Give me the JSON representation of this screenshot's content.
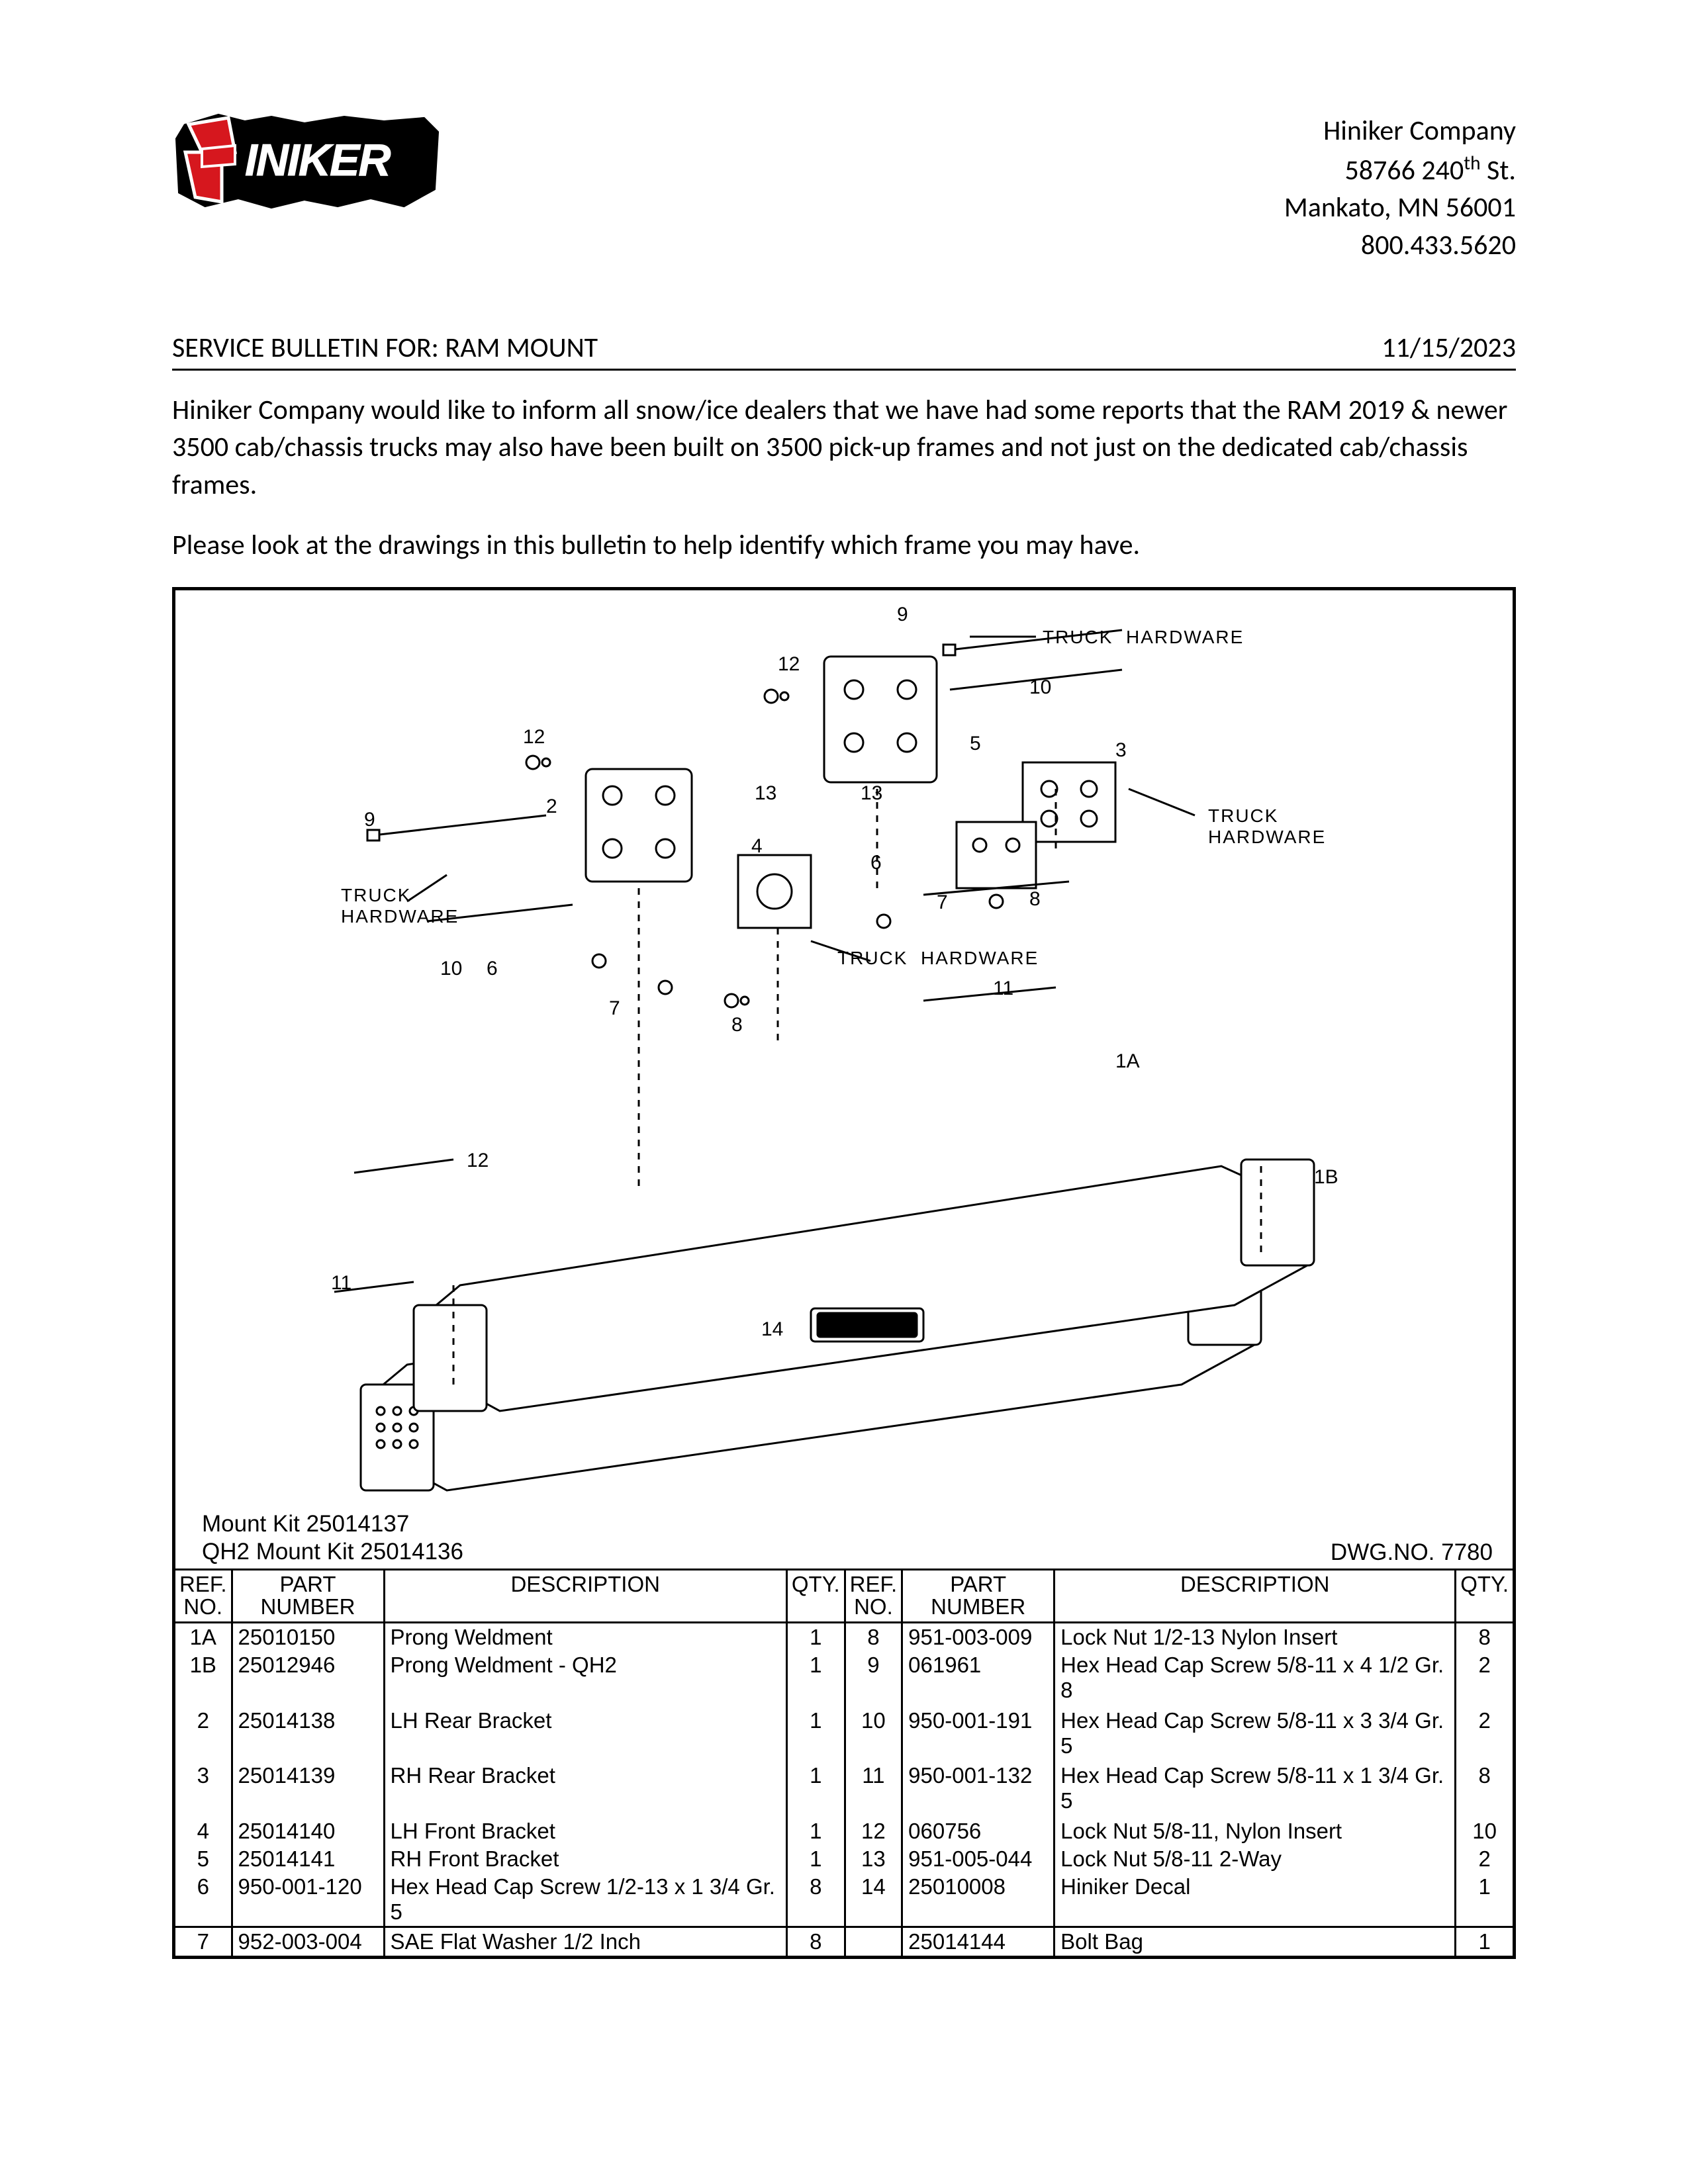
{
  "company": {
    "name": "Hiniker Company",
    "street": "58766 240th St.",
    "street_pre": "58766 240",
    "street_suffix": "th",
    "street_post": " St.",
    "city": "Mankato, MN 56001",
    "phone": "800.433.5620"
  },
  "bulletin": {
    "title": "SERVICE BULLETIN FOR: RAM MOUNT",
    "date": "11/15/2023"
  },
  "paragraphs": {
    "p1": "Hiniker Company would like to inform all snow/ice dealers that we have had some reports that the RAM 2019 & newer 3500 cab/chassis trucks may also have been built on 3500 pick-up frames and not just on the dedicated cab/chassis frames.",
    "p2": "Please look at the drawings in this bulletin to help identify which frame you may have."
  },
  "kits": {
    "line1": "Mount Kit 25014137",
    "line2": "QH2 Mount Kit 25014136",
    "dwg": "DWG.NO. 7780"
  },
  "diagram_labels": {
    "th1": "TRUCK  HARDWARE",
    "th2": "TRUCK\nHARDWARE",
    "th3": "TRUCK\nHARDWARE",
    "th4": "TRUCK  HARDWARE"
  },
  "callouts": [
    "1A",
    "1B",
    "2",
    "3",
    "4",
    "5",
    "6",
    "7",
    "8",
    "9",
    "10",
    "11",
    "12",
    "13",
    "14"
  ],
  "table": {
    "headers": {
      "ref": "REF.\nNO.",
      "part": "PART\nNUMBER",
      "desc": "DESCRIPTION",
      "qty": "QTY."
    },
    "left": [
      {
        "ref": "1A",
        "part": "25010150",
        "desc": "Prong Weldment",
        "qty": "1"
      },
      {
        "ref": "1B",
        "part": "25012946",
        "desc": "Prong Weldment - QH2",
        "qty": "1"
      },
      {
        "ref": "",
        "part": "",
        "desc": "",
        "qty": ""
      },
      {
        "ref": "2",
        "part": "25014138",
        "desc": "LH Rear Bracket",
        "qty": "1"
      },
      {
        "ref": "",
        "part": "",
        "desc": "",
        "qty": ""
      },
      {
        "ref": "3",
        "part": "25014139",
        "desc": "RH Rear Bracket",
        "qty": "1"
      },
      {
        "ref": "",
        "part": "",
        "desc": "",
        "qty": ""
      },
      {
        "ref": "4",
        "part": "25014140",
        "desc": "LH Front Bracket",
        "qty": "1"
      },
      {
        "ref": "5",
        "part": "25014141",
        "desc": "RH Front Bracket",
        "qty": "1"
      },
      {
        "ref": "6",
        "part": "950-001-120",
        "desc": "Hex Head Cap Screw 1/2-13 x 1 3/4 Gr. 5",
        "qty": "8"
      },
      {
        "ref": "7",
        "part": "952-003-004",
        "desc": "SAE Flat Washer 1/2 Inch",
        "qty": "8"
      }
    ],
    "right": [
      {
        "ref": "8",
        "part": "951-003-009",
        "desc": "Lock Nut 1/2-13 Nylon Insert",
        "qty": "8"
      },
      {
        "ref": "9",
        "part": "061961",
        "desc": "Hex Head Cap Screw 5/8-11 x 4 1/2 Gr. 8",
        "qty": "2"
      },
      {
        "ref": "10",
        "part": "950-001-191",
        "desc": "Hex Head Cap Screw 5/8-11 x 3 3/4 Gr. 5",
        "qty": "2"
      },
      {
        "ref": "11",
        "part": "950-001-132",
        "desc": "Hex Head Cap Screw 5/8-11 x 1 3/4 Gr. 5",
        "qty": "8"
      },
      {
        "ref": "12",
        "part": "060756",
        "desc": "Lock Nut 5/8-11, Nylon Insert",
        "qty": "10"
      },
      {
        "ref": "13",
        "part": "951-005-044",
        "desc": "Lock Nut 5/8-11 2-Way",
        "qty": "2"
      },
      {
        "ref": "14",
        "part": "25010008",
        "desc": "Hiniker Decal",
        "qty": "1"
      },
      {
        "ref": "",
        "part": "25014144",
        "desc": "Bolt Bag",
        "qty": "1"
      }
    ]
  },
  "colors": {
    "text": "#000000",
    "border": "#000000",
    "logo_red": "#d6171e",
    "logo_black": "#000000",
    "logo_white": "#ffffff"
  }
}
